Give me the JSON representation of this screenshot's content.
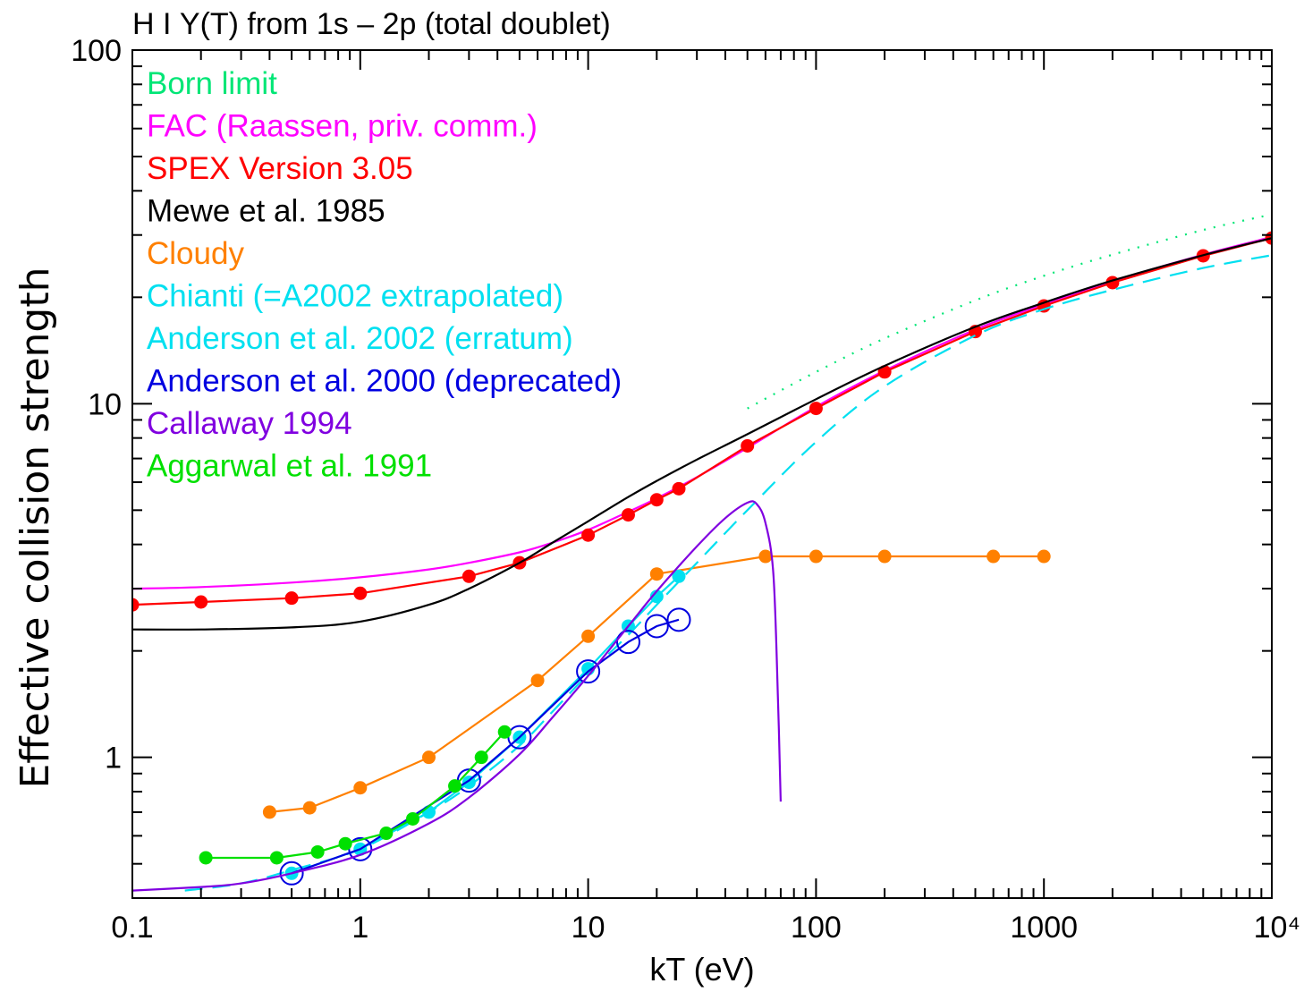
{
  "chart_data": {
    "type": "line",
    "title": "H I Υ(T) from 1s – 2p (total doublet)",
    "xlabel": "kT (eV)",
    "ylabel": "Effective collision strength",
    "xscale": "log",
    "yscale": "log",
    "xlim": [
      0.1,
      10000
    ],
    "ylim": [
      0.4,
      100
    ],
    "xticks": [
      {
        "value": 0.1,
        "label": "0.1"
      },
      {
        "value": 1,
        "label": "1"
      },
      {
        "value": 10,
        "label": "10"
      },
      {
        "value": 100,
        "label": "100"
      },
      {
        "value": 1000,
        "label": "1000"
      },
      {
        "value": 10000,
        "label": "10⁴"
      }
    ],
    "yticks": [
      {
        "value": 1,
        "label": "1"
      },
      {
        "value": 10,
        "label": "10"
      },
      {
        "value": 100,
        "label": "100"
      }
    ],
    "legend_position": "top-left",
    "series": [
      {
        "name": "Born limit",
        "color": "#00e676",
        "style": "dotted",
        "marker": "none",
        "x": [
          50,
          100,
          200,
          500,
          1000,
          2000,
          5000,
          10000
        ],
        "y": [
          9.7,
          12.3,
          15.3,
          19.6,
          23.0,
          26.4,
          31.0,
          34.3
        ]
      },
      {
        "name": "FAC (Raassen, priv. comm.)",
        "color": "#ff00ff",
        "style": "solid",
        "marker": "none",
        "x": [
          0.1,
          0.2,
          0.5,
          1,
          2,
          3,
          5,
          7,
          10,
          15,
          20,
          30,
          50,
          100,
          200,
          500,
          1000,
          2000,
          5000,
          10000
        ],
        "y": [
          3.0,
          3.03,
          3.12,
          3.23,
          3.4,
          3.55,
          3.8,
          4.05,
          4.4,
          4.95,
          5.4,
          6.2,
          7.5,
          9.8,
          12.4,
          16.2,
          19.1,
          22.2,
          26.4,
          29.6
        ]
      },
      {
        "name": "SPEX Version 3.05",
        "color": "#ff0000",
        "style": "solid",
        "marker": "dot",
        "x": [
          0.1,
          0.2,
          0.5,
          1,
          3,
          5,
          10,
          15,
          20,
          25,
          50,
          100,
          200,
          500,
          1000,
          2000,
          5000,
          10000
        ],
        "y": [
          2.7,
          2.75,
          2.82,
          2.91,
          3.25,
          3.55,
          4.25,
          4.85,
          5.35,
          5.75,
          7.6,
          9.7,
          12.3,
          16.0,
          18.9,
          22.0,
          26.2,
          29.4
        ]
      },
      {
        "name": "Mewe et al. 1985",
        "color": "#000000",
        "style": "solid",
        "marker": "none",
        "x": [
          0.1,
          0.2,
          0.5,
          1,
          2,
          3,
          5,
          7,
          10,
          15,
          20,
          30,
          50,
          100,
          200,
          500,
          1000,
          2000,
          5000,
          10000
        ],
        "y": [
          2.3,
          2.3,
          2.33,
          2.42,
          2.7,
          3.0,
          3.55,
          4.05,
          4.65,
          5.45,
          6.05,
          6.95,
          8.2,
          10.3,
          12.8,
          16.5,
          19.3,
          22.3,
          26.3,
          29.4
        ]
      },
      {
        "name": "Cloudy",
        "color": "#ff8000",
        "style": "solid",
        "marker": "dot",
        "x": [
          0.4,
          0.6,
          1,
          2,
          6,
          10,
          20,
          60,
          100,
          200,
          600,
          1000
        ],
        "y": [
          0.7,
          0.72,
          0.82,
          1.0,
          1.65,
          2.2,
          3.3,
          3.7,
          3.7,
          3.7,
          3.7,
          3.7
        ]
      },
      {
        "name": "Chianti (=A2002 extrapolated)",
        "color": "#00e0f0",
        "style": "dashed",
        "marker": "none",
        "x": [
          0.17,
          0.3,
          0.5,
          1,
          2,
          3,
          5,
          7,
          10,
          15,
          20,
          30,
          50,
          100,
          200,
          500,
          1000,
          2000,
          5000,
          10000
        ],
        "y": [
          0.42,
          0.44,
          0.48,
          0.55,
          0.7,
          0.83,
          1.08,
          1.35,
          1.72,
          2.22,
          2.7,
          3.55,
          5.0,
          7.8,
          11.2,
          15.6,
          18.5,
          21.0,
          24.2,
          26.3
        ]
      },
      {
        "name": "Anderson et al. 2002 (erratum)",
        "color": "#00e0f0",
        "style": "solid",
        "marker": "dot",
        "x": [
          0.5,
          1,
          2,
          3,
          5,
          10,
          15,
          20,
          25
        ],
        "y": [
          0.47,
          0.55,
          0.7,
          0.85,
          1.14,
          1.78,
          2.35,
          2.85,
          3.25
        ]
      },
      {
        "name": "Anderson et al. 2000 (deprecated)",
        "color": "#0000e0",
        "style": "solid",
        "marker": "circle",
        "x": [
          0.5,
          1,
          3,
          5,
          10,
          15,
          20,
          25
        ],
        "y": [
          0.47,
          0.55,
          0.86,
          1.14,
          1.75,
          2.12,
          2.35,
          2.45
        ]
      },
      {
        "name": "Callaway 1994",
        "color": "#8000e0",
        "style": "solid",
        "marker": "none",
        "x": [
          0.1,
          0.2,
          0.3,
          0.5,
          1,
          2,
          3,
          5,
          7,
          10,
          15,
          20,
          30,
          40,
          50,
          55,
          60,
          65,
          68,
          70
        ],
        "y": [
          0.42,
          0.43,
          0.44,
          0.47,
          0.53,
          0.65,
          0.77,
          1.02,
          1.3,
          1.7,
          2.35,
          2.95,
          3.95,
          4.75,
          5.25,
          5.2,
          4.6,
          3.3,
          1.5,
          0.75
        ]
      },
      {
        "name": "Aggarwal et al. 1991",
        "color": "#00e000",
        "style": "solid",
        "marker": "dot",
        "x": [
          0.21,
          0.43,
          0.65,
          0.86,
          1.3,
          1.7,
          2.6,
          3.4,
          4.3
        ],
        "y": [
          0.52,
          0.52,
          0.54,
          0.57,
          0.61,
          0.67,
          0.83,
          1.0,
          1.18
        ]
      }
    ]
  }
}
